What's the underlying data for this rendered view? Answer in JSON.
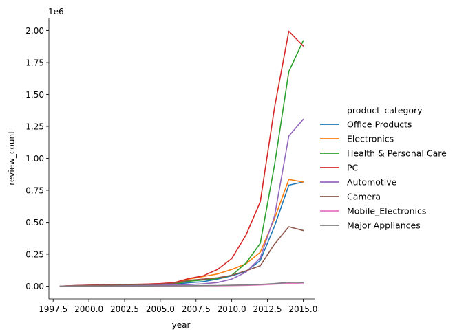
{
  "chart_data": {
    "type": "line",
    "title": "",
    "xlabel": "year",
    "ylabel": "review_count",
    "y_offset_label": "1e6",
    "xlim": [
      1997.2,
      2015.8
    ],
    "ylim": [
      -0.1,
      2.1
    ],
    "y_unit_multiplier": 1000000,
    "xticks": [
      1997.5,
      2000.0,
      2002.5,
      2005.0,
      2007.5,
      2010.0,
      2012.5,
      2015.0
    ],
    "xtick_labels": [
      "1997.5",
      "2000.0",
      "2002.5",
      "2005.0",
      "2007.5",
      "2010.0",
      "2012.5",
      "2015.0"
    ],
    "yticks": [
      0.0,
      0.25,
      0.5,
      0.75,
      1.0,
      1.25,
      1.5,
      1.75,
      2.0
    ],
    "ytick_labels": [
      "0.00",
      "0.25",
      "0.50",
      "0.75",
      "1.00",
      "1.25",
      "1.50",
      "1.75",
      "2.00"
    ],
    "legend_title": "product_category",
    "legend_position": "right",
    "grid": false,
    "x": [
      1998,
      1999,
      2000,
      2001,
      2002,
      2003,
      2004,
      2005,
      2006,
      2007,
      2008,
      2009,
      2010,
      2011,
      2012,
      2013,
      2014,
      2015
    ],
    "series": [
      {
        "name": "Office Products",
        "color": "#1f77b4",
        "values": [
          0.0,
          0.002,
          0.004,
          0.006,
          0.007,
          0.008,
          0.009,
          0.01,
          0.013,
          0.027,
          0.035,
          0.055,
          0.08,
          0.115,
          0.2,
          0.47,
          0.79,
          0.815
        ]
      },
      {
        "name": "Electronics",
        "color": "#ff7f0e",
        "values": [
          0.0,
          0.003,
          0.005,
          0.007,
          0.008,
          0.01,
          0.011,
          0.013,
          0.018,
          0.055,
          0.075,
          0.095,
          0.13,
          0.175,
          0.265,
          0.53,
          0.835,
          0.815
        ]
      },
      {
        "name": "Health & Personal Care",
        "color": "#2ca02c",
        "values": [
          0.0,
          0.002,
          0.004,
          0.006,
          0.007,
          0.008,
          0.01,
          0.012,
          0.018,
          0.038,
          0.048,
          0.06,
          0.085,
          0.18,
          0.335,
          0.95,
          1.68,
          1.92
        ]
      },
      {
        "name": "PC",
        "color": "#d62728",
        "values": [
          0.0,
          0.005,
          0.008,
          0.01,
          0.012,
          0.014,
          0.016,
          0.02,
          0.028,
          0.06,
          0.08,
          0.13,
          0.215,
          0.4,
          0.66,
          1.4,
          1.995,
          1.88
        ]
      },
      {
        "name": "Automotive",
        "color": "#9467bd",
        "values": [
          0.0,
          0.001,
          0.002,
          0.003,
          0.004,
          0.005,
          0.006,
          0.007,
          0.009,
          0.012,
          0.018,
          0.028,
          0.055,
          0.11,
          0.22,
          0.55,
          1.175,
          1.305
        ]
      },
      {
        "name": "Camera",
        "color": "#8c564b",
        "values": [
          0.0,
          0.004,
          0.006,
          0.008,
          0.01,
          0.012,
          0.013,
          0.015,
          0.022,
          0.045,
          0.055,
          0.065,
          0.085,
          0.12,
          0.16,
          0.33,
          0.465,
          0.435
        ]
      },
      {
        "name": "Mobile_Electronics",
        "color": "#e377c2",
        "values": [
          0.0,
          0.0,
          0.0,
          0.0,
          0.0,
          0.0,
          0.001,
          0.001,
          0.001,
          0.002,
          0.002,
          0.003,
          0.004,
          0.006,
          0.009,
          0.015,
          0.022,
          0.018
        ]
      },
      {
        "name": "Major Appliances",
        "color": "#7f7f7f",
        "values": [
          0.0,
          0.0,
          0.0,
          0.0,
          0.001,
          0.001,
          0.001,
          0.002,
          0.002,
          0.003,
          0.004,
          0.005,
          0.007,
          0.01,
          0.013,
          0.02,
          0.03,
          0.028
        ]
      }
    ]
  }
}
